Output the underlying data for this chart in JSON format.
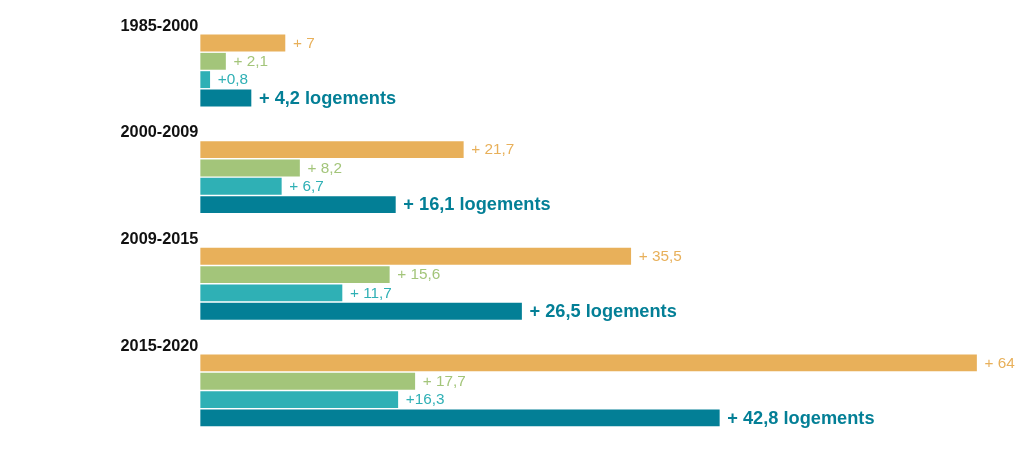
{
  "chart_data": {
    "type": "bar",
    "orientation": "horizontal",
    "categories": [
      "1985-2000",
      "2000-2009",
      "2009-2015",
      "2015-2020"
    ],
    "series": [
      {
        "color": "#e8b05a",
        "values": [
          7,
          21.7,
          35.5,
          64
        ],
        "value_labels": [
          "+ 7",
          "+ 21,7",
          "+ 35,5",
          "+ 64"
        ]
      },
      {
        "color": "#a3c57a",
        "values": [
          2.1,
          8.2,
          15.6,
          17.7
        ],
        "value_labels": [
          "+ 2,1",
          "+ 8,2",
          "+ 15,6",
          "+ 17,7"
        ]
      },
      {
        "color": "#2fb0b5",
        "values": [
          0.8,
          6.7,
          11.7,
          16.3
        ],
        "value_labels": [
          "+0,8",
          "+ 6,7",
          "+ 11,7",
          "+16,3"
        ]
      },
      {
        "color": "#037f96",
        "values": [
          4.2,
          16.1,
          26.5,
          42.8
        ],
        "value_labels": [
          "+ 4,2 logements",
          "+ 16,1 logements",
          "+ 26,5 logements",
          "+ 42,8 logements"
        ]
      }
    ],
    "legend": false,
    "grid": false
  }
}
